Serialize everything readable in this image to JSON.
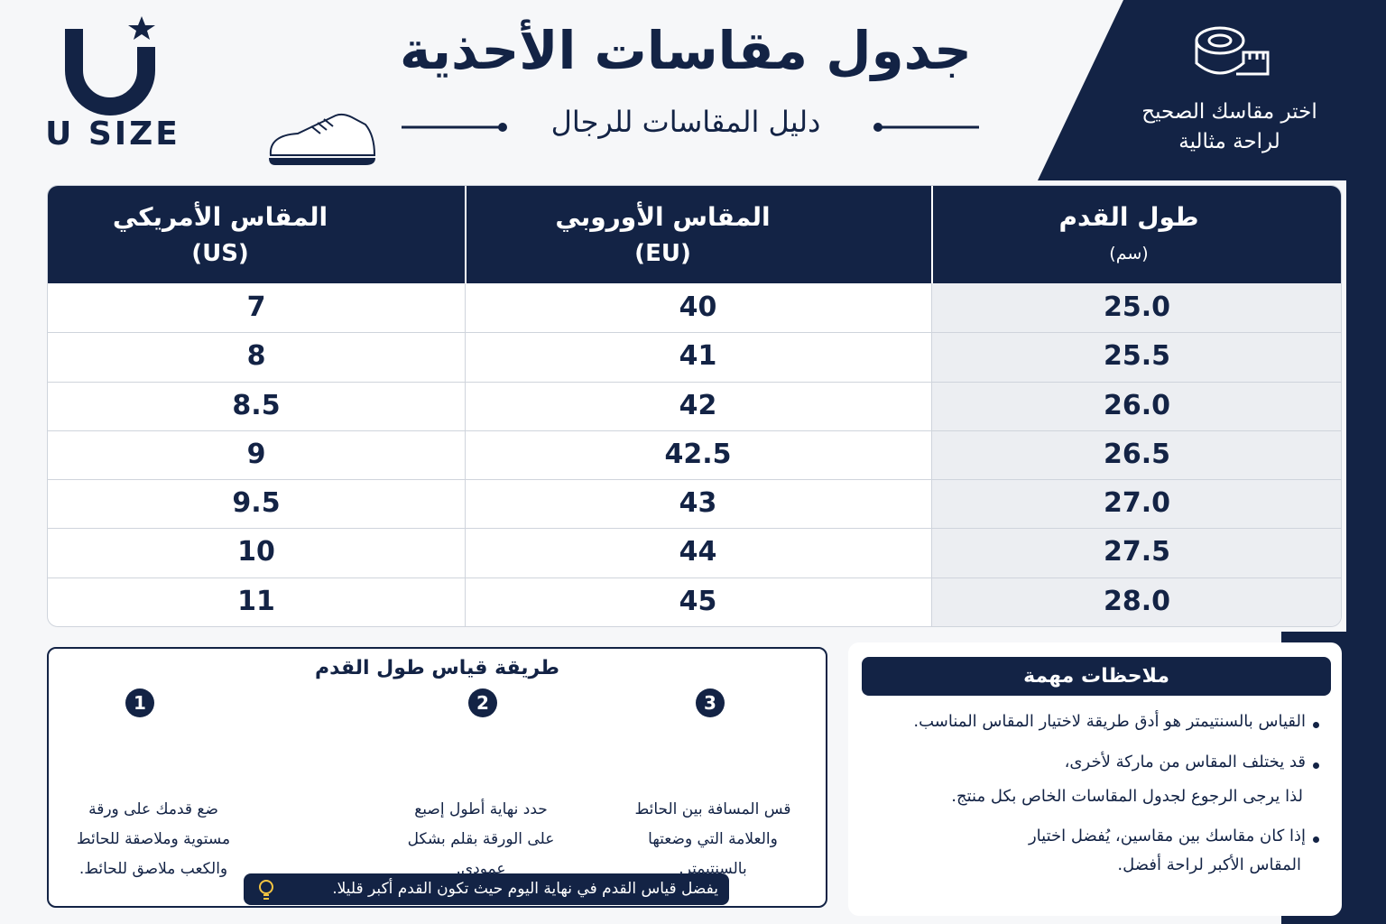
{
  "brand": "U SIZE",
  "header": {
    "title": "جدول مقاسات الأحذية",
    "subtitle": "دليل المقاسات للرجال",
    "tagline": [
      "اختر مقاسك الصحيح",
      "لراحة مثالية"
    ]
  },
  "table": {
    "columns": [
      {
        "title": "طول القدم",
        "unit": "(سم)"
      },
      {
        "title": "المقاس الأوروبي",
        "unit": "(EU)"
      },
      {
        "title": "المقاس الأمريكي",
        "unit": "(US)"
      }
    ],
    "rows": [
      [
        "25.0",
        "40",
        "7"
      ],
      [
        "25.5",
        "41",
        "8"
      ],
      [
        "26.0",
        "42",
        "8.5"
      ],
      [
        "26.5",
        "42.5",
        "9"
      ],
      [
        "27.0",
        "43",
        "9.5"
      ],
      [
        "27.5",
        "44",
        "10"
      ],
      [
        "28.0",
        "45",
        "11"
      ]
    ]
  },
  "how_to": {
    "title": "طريقة قياس طول القدم",
    "steps": [
      {
        "number": 1,
        "lines": [
          "ضع قدمك على ورقة",
          "مستوية وملاصقة للحائط",
          "والكعب ملاصق للحائط."
        ]
      },
      {
        "number": 2,
        "lines": [
          "حدد نهاية أطول إصبع",
          "على الورقة بقلم بشكل",
          "عمودي."
        ]
      },
      {
        "number": 3,
        "lines": [
          "قس المسافة بين الحائط",
          "والعلامة التي وضعتها",
          "بالسنتيمتر."
        ]
      }
    ],
    "tip": "يفضل قياس القدم في نهاية اليوم حيث تكون القدم أكبر قليلا."
  },
  "notes": {
    "title": "ملاحظات مهمة",
    "items": [
      [
        "القياس بالسنتيمتر هو أدق طريقة لاختيار المقاس المناسب."
      ],
      [
        "قد يختلف المقاس من ماركة لأخرى،",
        "لذا يرجى الرجوع لجدول المقاسات الخاص بكل منتج."
      ],
      [
        "إذا كان مقاسك بين مقاسين، يُفضل اختيار",
        "المقاس الأكبر لراحة أفضل."
      ]
    ]
  }
}
